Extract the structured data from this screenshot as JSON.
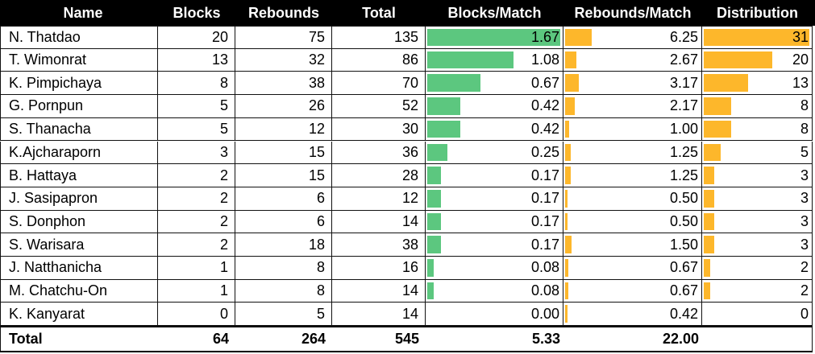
{
  "header": {
    "name": "Name",
    "blocks": "Blocks",
    "rebounds": "Rebounds",
    "total": "Total",
    "bpm": "Blocks/Match",
    "rpm": "Rebounds/Match",
    "dist": "Distribution"
  },
  "rows": [
    {
      "name": "N. Thatdao",
      "blocks": "20",
      "rebounds": "75",
      "total": "135",
      "bpm": "1.67",
      "rpm": "6.25",
      "dist": "31"
    },
    {
      "name": "T. Wimonrat",
      "blocks": "13",
      "rebounds": "32",
      "total": "86",
      "bpm": "1.08",
      "rpm": "2.67",
      "dist": "20"
    },
    {
      "name": "K. Pimpichaya",
      "blocks": "8",
      "rebounds": "38",
      "total": "70",
      "bpm": "0.67",
      "rpm": "3.17",
      "dist": "13"
    },
    {
      "name": "G. Pornpun",
      "blocks": "5",
      "rebounds": "26",
      "total": "52",
      "bpm": "0.42",
      "rpm": "2.17",
      "dist": "8"
    },
    {
      "name": "S. Thanacha",
      "blocks": "5",
      "rebounds": "12",
      "total": "30",
      "bpm": "0.42",
      "rpm": "1.00",
      "dist": "8"
    },
    {
      "name": "K.Ajcharaporn",
      "blocks": "3",
      "rebounds": "15",
      "total": "36",
      "bpm": "0.25",
      "rpm": "1.25",
      "dist": "5"
    },
    {
      "name": "B. Hattaya",
      "blocks": "2",
      "rebounds": "15",
      "total": "28",
      "bpm": "0.17",
      "rpm": "1.25",
      "dist": "3"
    },
    {
      "name": "J. Sasipapron",
      "blocks": "2",
      "rebounds": "6",
      "total": "12",
      "bpm": "0.17",
      "rpm": "0.50",
      "dist": "3"
    },
    {
      "name": "S. Donphon",
      "blocks": "2",
      "rebounds": "6",
      "total": "14",
      "bpm": "0.17",
      "rpm": "0.50",
      "dist": "3"
    },
    {
      "name": "S. Warisara",
      "blocks": "2",
      "rebounds": "18",
      "total": "38",
      "bpm": "0.17",
      "rpm": "1.50",
      "dist": "3"
    },
    {
      "name": "J. Natthanicha",
      "blocks": "1",
      "rebounds": "8",
      "total": "16",
      "bpm": "0.08",
      "rpm": "0.67",
      "dist": "2"
    },
    {
      "name": "M. Chatchu-On",
      "blocks": "1",
      "rebounds": "8",
      "total": "14",
      "bpm": "0.08",
      "rpm": "0.67",
      "dist": "2"
    },
    {
      "name": "K. Kanyarat",
      "blocks": "0",
      "rebounds": "5",
      "total": "14",
      "bpm": "0.00",
      "rpm": "0.42",
      "dist": "0"
    }
  ],
  "totals": {
    "name": "Total",
    "blocks": "64",
    "rebounds": "264",
    "total": "545",
    "bpm": "5.33",
    "rpm": "22.00",
    "dist": ""
  },
  "colors": {
    "header_bg": "#000000",
    "header_text": "#ffffff",
    "bar_blocks_per_match": "#5cc77f",
    "bar_rebounds_per_match": "#fdb72b",
    "bar_distribution": "#fdb72b"
  }
}
